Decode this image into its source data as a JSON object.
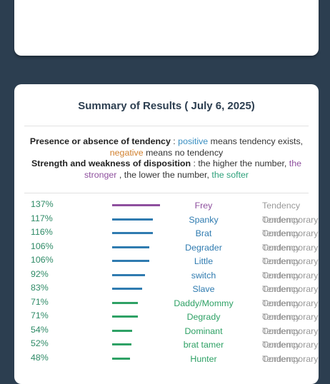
{
  "summary": {
    "title": "Summary of Results ( July 6, 2025)",
    "legend": {
      "l1_bold": "Presence or absence of tendency",
      "l1_sep": " : ",
      "l1_positive": "positive",
      "l1_mid": " means tendency exists, ",
      "l1_negative": "negative",
      "l1_end": " means no tendency",
      "l2_bold": "Strength and weakness of disposition",
      "l2_mid": " : the higher the number, ",
      "l2_stronger": "the stronger",
      "l2_mid2": " , the lower the number, ",
      "l2_softer": "the softer"
    }
  },
  "colors": {
    "purple": "#8e4f9e",
    "blue": "#2f7bb0",
    "green": "#2ea165"
  },
  "rows": [
    {
      "pct": "137%",
      "name": "Frey",
      "tag": "Tendency",
      "tag_over": "",
      "bar": 1.0,
      "color": "purple"
    },
    {
      "pct": "117%",
      "name": "Spanky",
      "tag": "Tendency",
      "tag_over": "Contemporary",
      "bar": 0.85,
      "color": "blue"
    },
    {
      "pct": "116%",
      "name": "Brat",
      "tag": "Tendency",
      "tag_over": "Contemporary",
      "bar": 0.85,
      "color": "blue"
    },
    {
      "pct": "106%",
      "name": "Degrader",
      "tag": "Tendency",
      "tag_over": "Contemporary",
      "bar": 0.77,
      "color": "blue"
    },
    {
      "pct": "106%",
      "name": "Little",
      "tag": "Tendency",
      "tag_over": "Contemporary",
      "bar": 0.77,
      "color": "blue"
    },
    {
      "pct": "92%",
      "name": "switch",
      "tag": "Tendency",
      "tag_over": "Contemporary",
      "bar": 0.69,
      "color": "blue"
    },
    {
      "pct": "83%",
      "name": "Slave",
      "tag": "Tendency",
      "tag_over": "Contemporary",
      "bar": 0.62,
      "color": "blue"
    },
    {
      "pct": "71%",
      "name": "Daddy/Mommy",
      "tag": "Tendency",
      "tag_over": "Contemporary",
      "bar": 0.54,
      "color": "green"
    },
    {
      "pct": "71%",
      "name": "Degrady",
      "tag": "Tendency",
      "tag_over": "Contemporary",
      "bar": 0.54,
      "color": "green"
    },
    {
      "pct": "54%",
      "name": "Dominant",
      "tag": "Tendency",
      "tag_over": "Contemporary",
      "bar": 0.42,
      "color": "green"
    },
    {
      "pct": "52%",
      "name": "brat tamer",
      "tag": "Tendency",
      "tag_over": "Contemporary",
      "bar": 0.4,
      "color": "green"
    },
    {
      "pct": "48%",
      "name": "Hunter",
      "tag": "Tendency",
      "tag_over": "Contemporary",
      "bar": 0.37,
      "color": "green"
    }
  ]
}
